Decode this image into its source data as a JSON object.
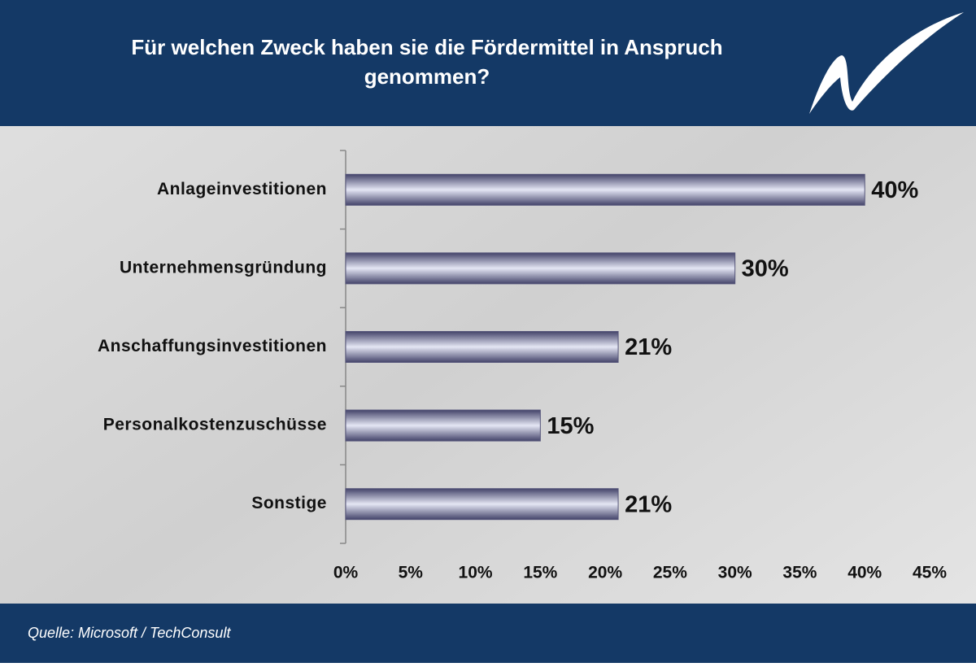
{
  "chart_data": {
    "type": "bar",
    "orientation": "horizontal",
    "title": "Für welchen Zweck haben sie die Fördermittel in Anspruch genommen?",
    "source": "Quelle: Microsoft / TechConsult",
    "categories": [
      "Anlageinvestitionen",
      "Unternehmensgründung",
      "Anschaffungsinvestitionen",
      "Personalkostenzuschüsse",
      "Sonstige"
    ],
    "values": [
      40,
      30,
      21,
      15,
      21
    ],
    "value_labels": [
      "40%",
      "30%",
      "21%",
      "15%",
      "21%"
    ],
    "color": "#55557a",
    "xlim": [
      0,
      45
    ],
    "xticks": [
      {
        "value": 0,
        "label": "0%"
      },
      {
        "value": 5,
        "label": "5%"
      },
      {
        "value": 10,
        "label": "10%"
      },
      {
        "value": 15,
        "label": "15%"
      },
      {
        "value": 20,
        "label": "20%"
      },
      {
        "value": 25,
        "label": "25%"
      },
      {
        "value": 30,
        "label": "30%"
      },
      {
        "value": 35,
        "label": "35%"
      },
      {
        "value": 40,
        "label": "40%"
      },
      {
        "value": 45,
        "label": "45%"
      }
    ]
  }
}
